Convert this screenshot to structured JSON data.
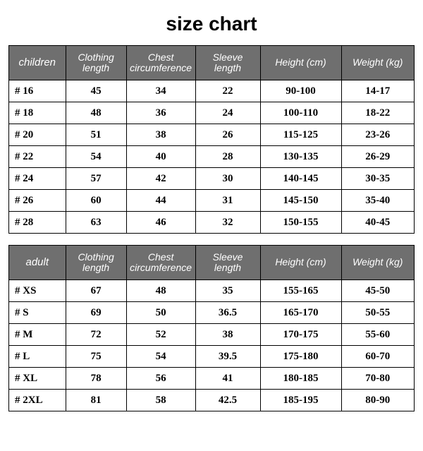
{
  "title": "size chart",
  "styling": {
    "page_bg": "#ffffff",
    "header_bg": "#6f6f6f",
    "header_fg": "#ffffff",
    "cell_bg": "#ffffff",
    "cell_fg": "#000000",
    "border_color": "#000000",
    "title_fontsize_pt": 21,
    "header_fontsize_pt": 11,
    "cell_fontsize_pt": 11,
    "title_font": "Comic Sans / script",
    "header_font": "Comic Sans / script italic",
    "cell_font": "Times New Roman bold",
    "column_widths_pct": [
      14,
      15,
      17,
      16,
      20,
      18
    ],
    "size_prefix": "# "
  },
  "tables": [
    {
      "section_label": "children",
      "columns": [
        "Clothing length",
        "Chest circumference",
        "Sleeve length",
        "Height (cm)",
        "Weight (kg)"
      ],
      "rows": [
        {
          "size": "16",
          "values": [
            "45",
            "34",
            "22",
            "90-100",
            "14-17"
          ]
        },
        {
          "size": "18",
          "values": [
            "48",
            "36",
            "24",
            "100-110",
            "18-22"
          ]
        },
        {
          "size": "20",
          "values": [
            "51",
            "38",
            "26",
            "115-125",
            "23-26"
          ]
        },
        {
          "size": "22",
          "values": [
            "54",
            "40",
            "28",
            "130-135",
            "26-29"
          ]
        },
        {
          "size": "24",
          "values": [
            "57",
            "42",
            "30",
            "140-145",
            "30-35"
          ]
        },
        {
          "size": "26",
          "values": [
            "60",
            "44",
            "31",
            "145-150",
            "35-40"
          ]
        },
        {
          "size": "28",
          "values": [
            "63",
            "46",
            "32",
            "150-155",
            "40-45"
          ]
        }
      ]
    },
    {
      "section_label": "adult",
      "columns": [
        "Clothing length",
        "Chest circumference",
        "Sleeve length",
        "Height (cm)",
        "Weight (kg)"
      ],
      "rows": [
        {
          "size": "XS",
          "values": [
            "67",
            "48",
            "35",
            "155-165",
            "45-50"
          ]
        },
        {
          "size": "S",
          "values": [
            "69",
            "50",
            "36.5",
            "165-170",
            "50-55"
          ]
        },
        {
          "size": "M",
          "values": [
            "72",
            "52",
            "38",
            "170-175",
            "55-60"
          ]
        },
        {
          "size": "L",
          "values": [
            "75",
            "54",
            "39.5",
            "175-180",
            "60-70"
          ]
        },
        {
          "size": "XL",
          "values": [
            "78",
            "56",
            "41",
            "180-185",
            "70-80"
          ]
        },
        {
          "size": "2XL",
          "values": [
            "81",
            "58",
            "42.5",
            "185-195",
            "80-90"
          ]
        }
      ]
    }
  ]
}
